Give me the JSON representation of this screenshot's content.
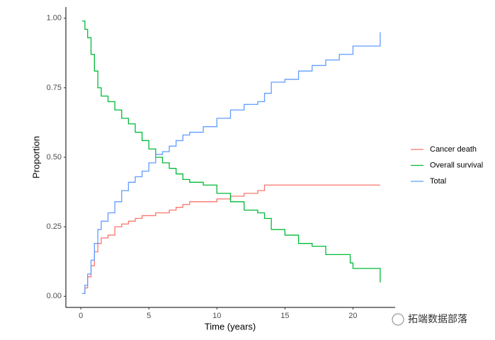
{
  "chart_data": {
    "type": "step",
    "xlabel": "Time (years)",
    "ylabel": "Proportion",
    "x": [
      0.1,
      0.3,
      0.5,
      0.75,
      1,
      1.25,
      1.5,
      2,
      2.5,
      3,
      3.5,
      4,
      4.5,
      5,
      5.5,
      6,
      6.5,
      7,
      7.5,
      8,
      9,
      10,
      11,
      12,
      13,
      13.5,
      14,
      15,
      16,
      17,
      18,
      19,
      19.8,
      20,
      21,
      22
    ],
    "series": [
      {
        "name": "Cancer death",
        "color": "#f8766d",
        "values": [
          0.01,
          0.03,
          0.07,
          0.11,
          0.16,
          0.19,
          0.21,
          0.22,
          0.25,
          0.26,
          0.27,
          0.28,
          0.29,
          0.29,
          0.3,
          0.3,
          0.31,
          0.32,
          0.33,
          0.34,
          0.34,
          0.35,
          0.36,
          0.37,
          0.38,
          0.4,
          0.4,
          0.4,
          0.4,
          0.4,
          0.4,
          0.4,
          0.4,
          0.4,
          0.4,
          0.4
        ]
      },
      {
        "name": "Overall survival",
        "color": "#00ba38",
        "values": [
          0.99,
          0.96,
          0.93,
          0.87,
          0.81,
          0.75,
          0.72,
          0.7,
          0.67,
          0.64,
          0.62,
          0.59,
          0.56,
          0.53,
          0.5,
          0.48,
          0.46,
          0.44,
          0.42,
          0.41,
          0.4,
          0.37,
          0.34,
          0.31,
          0.3,
          0.28,
          0.24,
          0.22,
          0.19,
          0.18,
          0.15,
          0.15,
          0.12,
          0.1,
          0.1,
          0.05
        ]
      },
      {
        "name": "Total",
        "color": "#619cff",
        "values": [
          0.01,
          0.04,
          0.08,
          0.13,
          0.19,
          0.24,
          0.27,
          0.3,
          0.34,
          0.38,
          0.41,
          0.43,
          0.45,
          0.48,
          0.51,
          0.52,
          0.54,
          0.56,
          0.58,
          0.59,
          0.61,
          0.64,
          0.67,
          0.69,
          0.7,
          0.73,
          0.77,
          0.78,
          0.81,
          0.83,
          0.85,
          0.87,
          0.87,
          0.9,
          0.9,
          0.95
        ]
      }
    ],
    "xlim": [
      -1.1,
      23.1
    ],
    "xticks": [
      0,
      5,
      10,
      15,
      20
    ],
    "ylim": [
      -0.04,
      1.04
    ],
    "yticks": [
      {
        "value": 0,
        "label": "0.00"
      },
      {
        "value": 0.25,
        "label": "0.25"
      },
      {
        "value": 0.5,
        "label": "0.50"
      },
      {
        "value": 0.75,
        "label": "0.75"
      },
      {
        "value": 1,
        "label": "1.00"
      }
    ],
    "watermark": "拓端数据部落"
  }
}
